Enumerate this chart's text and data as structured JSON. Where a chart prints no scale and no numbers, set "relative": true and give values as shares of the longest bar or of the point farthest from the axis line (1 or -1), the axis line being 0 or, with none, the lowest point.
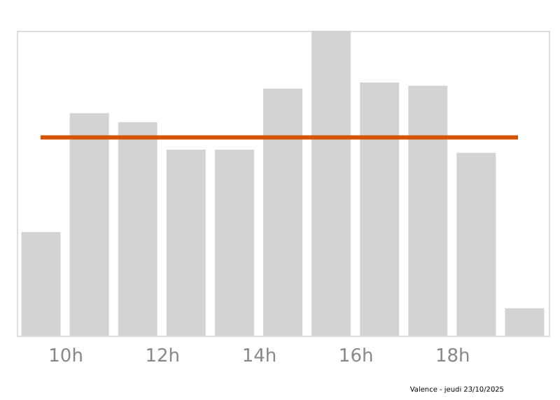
{
  "chart_data": {
    "type": "bar",
    "relative": true,
    "x": [
      9.5,
      10.5,
      11.5,
      12.5,
      13.5,
      14.5,
      15.5,
      16.5,
      17.5,
      18.5,
      19.5
    ],
    "values": [
      0.34,
      0.73,
      0.7,
      0.61,
      0.61,
      0.81,
      1,
      0.83,
      0.82,
      0.6,
      0.09
    ],
    "color": "#d3d3d3",
    "xlim": [
      9,
      20
    ],
    "xticks": [
      {
        "value": 10,
        "label": "10h"
      },
      {
        "value": 12,
        "label": "12h"
      },
      {
        "value": 14,
        "label": "14h"
      },
      {
        "value": 16,
        "label": "16h"
      },
      {
        "value": 18,
        "label": "18h"
      }
    ],
    "ref_lines": [
      {
        "axis": "y",
        "value": 0.65,
        "label": null,
        "color": "#d35400"
      }
    ],
    "annotations": [
      "Valence - jeudi 23/10/2025"
    ],
    "grid": false,
    "legend": false
  }
}
